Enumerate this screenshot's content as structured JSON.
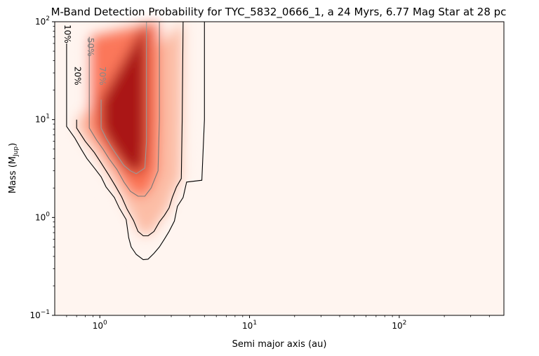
{
  "chart_data": {
    "type": "heatmap",
    "title": "M-Band Detection Probability for TYC_5832_0666_1, a 24 Myrs, 6.77 Mag Star at 28 pc",
    "xlabel": "Semi major axis (au)",
    "ylabel": "Mass (M",
    "ylabel_sub": "Jup",
    "ylabel_close": ")",
    "xscale": "log",
    "yscale": "log",
    "xlim": [
      0.5,
      500
    ],
    "ylim": [
      0.1,
      100
    ],
    "x_ticks": [
      {
        "value": 1,
        "base": "10",
        "exp": "0"
      },
      {
        "value": 10,
        "base": "10",
        "exp": "1"
      },
      {
        "value": 100,
        "base": "10",
        "exp": "2"
      }
    ],
    "y_ticks": [
      {
        "value": 0.1,
        "base": "10",
        "exp": "−1"
      },
      {
        "value": 1,
        "base": "10",
        "exp": "0"
      },
      {
        "value": 10,
        "base": "10",
        "exp": "1"
      },
      {
        "value": 100,
        "base": "10",
        "exp": "2"
      }
    ],
    "colormap": "Reds",
    "colors": {
      "low": "#fff5f0",
      "mid": "#fb6a4a",
      "high": "#a50f15"
    },
    "contours": [
      {
        "level": 10,
        "label": "10%",
        "color": "#000000",
        "points": [
          [
            0.6,
            60
          ],
          [
            0.6,
            8.5
          ],
          [
            0.68,
            6.5
          ],
          [
            0.75,
            5
          ],
          [
            0.82,
            4
          ],
          [
            0.92,
            3.2
          ],
          [
            1.02,
            2.6
          ],
          [
            1.1,
            2.05
          ],
          [
            1.25,
            1.6
          ],
          [
            1.35,
            1.25
          ],
          [
            1.5,
            0.95
          ],
          [
            1.56,
            0.62
          ],
          [
            1.62,
            0.5
          ],
          [
            1.75,
            0.42
          ],
          [
            1.95,
            0.37
          ],
          [
            2.1,
            0.375
          ],
          [
            2.3,
            0.43
          ],
          [
            2.5,
            0.5
          ],
          [
            2.7,
            0.6
          ],
          [
            2.9,
            0.72
          ],
          [
            3.15,
            0.92
          ],
          [
            3.3,
            1.3
          ],
          [
            3.6,
            1.6
          ],
          [
            3.8,
            2.3
          ],
          [
            4.8,
            2.4
          ],
          [
            5.0,
            10
          ],
          [
            5.0,
            100
          ]
        ]
      },
      {
        "level": 20,
        "label": "20%",
        "color": "#000000",
        "points": [
          [
            0.7,
            10
          ],
          [
            0.7,
            8.2
          ],
          [
            0.8,
            6
          ],
          [
            0.92,
            4.6
          ],
          [
            1.02,
            3.6
          ],
          [
            1.15,
            2.7
          ],
          [
            1.27,
            2.1
          ],
          [
            1.4,
            1.62
          ],
          [
            1.52,
            1.22
          ],
          [
            1.68,
            0.93
          ],
          [
            1.8,
            0.72
          ],
          [
            1.95,
            0.65
          ],
          [
            2.1,
            0.65
          ],
          [
            2.3,
            0.72
          ],
          [
            2.5,
            0.9
          ],
          [
            2.7,
            1.05
          ],
          [
            2.9,
            1.25
          ],
          [
            3.05,
            1.6
          ],
          [
            3.25,
            2.05
          ],
          [
            3.5,
            2.5
          ],
          [
            3.55,
            10
          ],
          [
            3.6,
            100
          ]
        ]
      },
      {
        "level": 50,
        "label": "50%",
        "color": "#777777",
        "points": [
          [
            0.85,
            70
          ],
          [
            0.85,
            8.2
          ],
          [
            0.95,
            6.2
          ],
          [
            1.05,
            5
          ],
          [
            1.15,
            4
          ],
          [
            1.3,
            3.1
          ],
          [
            1.45,
            2.3
          ],
          [
            1.6,
            1.85
          ],
          [
            1.8,
            1.65
          ],
          [
            2.0,
            1.65
          ],
          [
            2.2,
            2.0
          ],
          [
            2.45,
            3.0
          ],
          [
            2.5,
            10
          ],
          [
            2.5,
            100
          ]
        ]
      },
      {
        "level": 70,
        "label": "70%",
        "color": "#999999",
        "points": [
          [
            1.02,
            16
          ],
          [
            1.02,
            8.2
          ],
          [
            1.1,
            6.5
          ],
          [
            1.2,
            5.2
          ],
          [
            1.32,
            4.2
          ],
          [
            1.45,
            3.4
          ],
          [
            1.6,
            3.0
          ],
          [
            1.75,
            2.8
          ],
          [
            2.0,
            3.2
          ],
          [
            2.05,
            6
          ],
          [
            2.05,
            10
          ],
          [
            2.05,
            100
          ]
        ]
      }
    ],
    "contour_labels": [
      {
        "text": "10%",
        "x": 0.58,
        "y": 75,
        "color": "#000000"
      },
      {
        "text": "20%",
        "x": 0.68,
        "y": 28,
        "color": "#000000"
      },
      {
        "text": "50%",
        "x": 0.83,
        "y": 55,
        "color": "#777777"
      },
      {
        "text": "70%",
        "x": 1.0,
        "y": 28,
        "color": "#888888"
      }
    ]
  }
}
